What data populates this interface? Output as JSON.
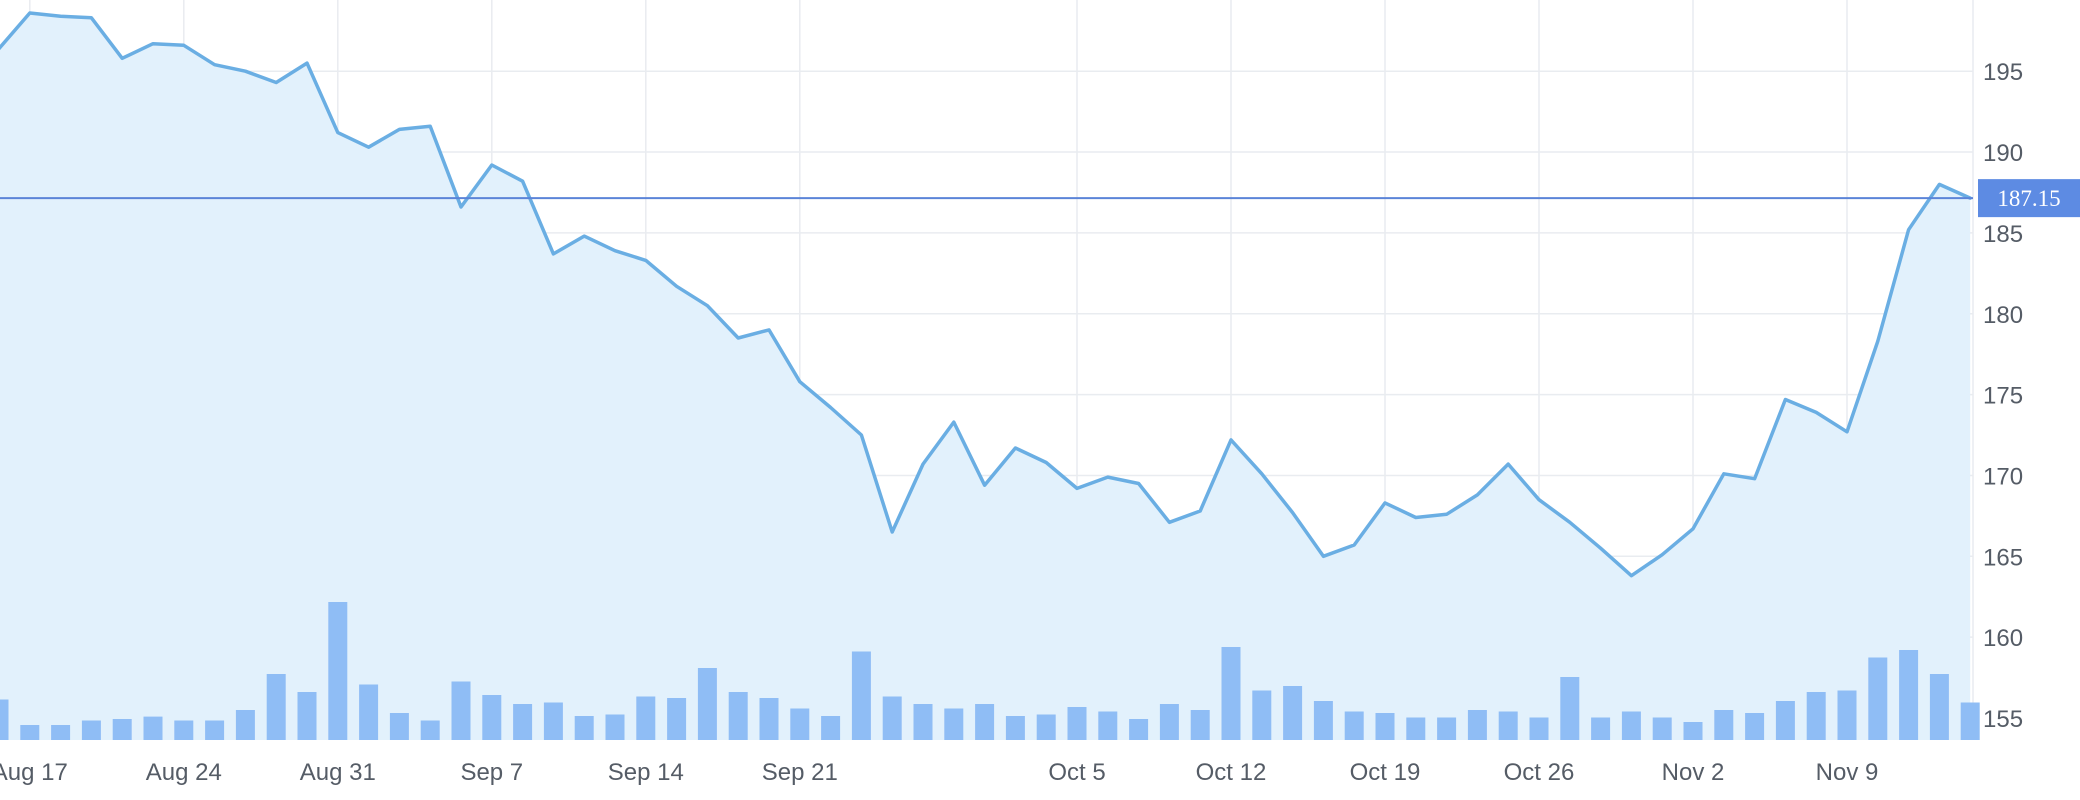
{
  "chart_data": {
    "type": "area",
    "y_axis_position": "right",
    "ylim": [
      153,
      199
    ],
    "y_ticks": [
      155,
      160,
      165,
      170,
      175,
      180,
      185,
      190,
      195
    ],
    "x_tick_labels": [
      {
        "label": "Aug 17",
        "index": 1
      },
      {
        "label": "Aug 24",
        "index": 6
      },
      {
        "label": "Aug 31",
        "index": 11
      },
      {
        "label": "Sep 7",
        "index": 16
      },
      {
        "label": "Sep 14",
        "index": 21
      },
      {
        "label": "Sep 21",
        "index": 26
      },
      {
        "label": "Oct 5",
        "index": 35
      },
      {
        "label": "Oct 12",
        "index": 40
      },
      {
        "label": "Oct 19",
        "index": 45
      },
      {
        "label": "Oct 26",
        "index": 50
      },
      {
        "label": "Nov 2",
        "index": 55
      },
      {
        "label": "Nov 9",
        "index": 60
      }
    ],
    "price_series": [
      196.4,
      198.6,
      198.4,
      198.3,
      195.8,
      196.7,
      196.6,
      195.4,
      195.0,
      194.3,
      195.5,
      191.2,
      190.3,
      191.4,
      191.6,
      186.6,
      189.2,
      188.2,
      183.7,
      184.8,
      183.9,
      183.3,
      181.7,
      180.5,
      178.5,
      179.0,
      175.8,
      174.2,
      172.5,
      166.5,
      170.7,
      173.3,
      169.4,
      171.7,
      170.8,
      169.2,
      169.9,
      169.5,
      167.1,
      167.8,
      172.2,
      170.1,
      167.7,
      165.0,
      165.7,
      168.3,
      167.4,
      167.6,
      168.8,
      170.7,
      168.5,
      167.1,
      165.5,
      163.8,
      165.1,
      166.7,
      170.1,
      169.8,
      174.7,
      173.9,
      172.7,
      178.3,
      185.2,
      188.0,
      187.15
    ],
    "volume_series": [
      1.35,
      0.5,
      0.5,
      0.65,
      0.7,
      0.78,
      0.65,
      0.65,
      1.0,
      2.2,
      1.6,
      4.6,
      1.85,
      0.9,
      0.65,
      1.95,
      1.5,
      1.2,
      1.25,
      0.8,
      0.85,
      1.45,
      1.4,
      2.4,
      1.6,
      1.4,
      1.05,
      0.8,
      2.95,
      1.45,
      1.2,
      1.05,
      1.2,
      0.8,
      0.85,
      1.1,
      0.95,
      0.7,
      1.2,
      1.0,
      3.1,
      1.65,
      1.8,
      1.3,
      0.95,
      0.9,
      0.75,
      0.75,
      1.0,
      0.95,
      0.75,
      2.1,
      0.75,
      0.95,
      0.75,
      0.6,
      1.0,
      0.9,
      1.3,
      1.6,
      1.65,
      2.75,
      3.0,
      2.2,
      1.25
    ],
    "current_price": "187.15",
    "current_price_value": 187.15,
    "grid": true,
    "colors": {
      "line": "#6aaee3",
      "area_fill": "#e2f1fc",
      "volume_bar": "#8fbdf5",
      "current_price_line": "#5b84d8",
      "current_price_badge": "#5d8be3",
      "grid_line": "#e9ecf0",
      "tick_text": "#555c66"
    }
  }
}
